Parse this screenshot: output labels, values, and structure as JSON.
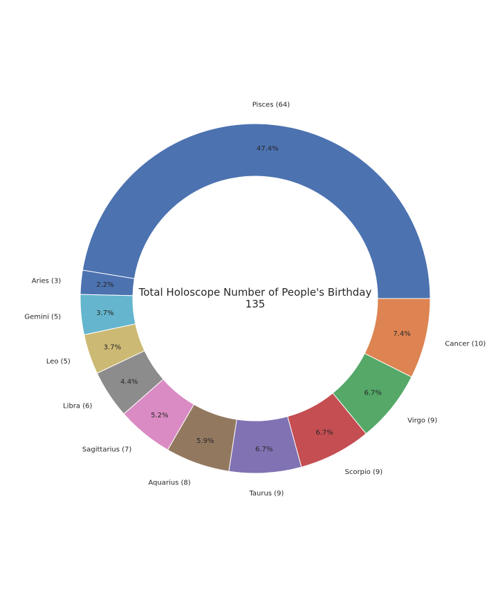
{
  "chart_data": {
    "type": "pie",
    "donut": true,
    "center_text": [
      "Total Holoscope Number of People's Birthday",
      "135"
    ],
    "slices": [
      {
        "name": "Pisces",
        "value": 64,
        "label": "Pisces (64)",
        "pct": "47.4%",
        "color": "#4c72b0"
      },
      {
        "name": "Aries",
        "value": 3,
        "label": "Aries (3)",
        "pct": "2.2%",
        "color": "#4c72b0"
      },
      {
        "name": "Gemini",
        "value": 5,
        "label": "Gemini (5)",
        "pct": "3.7%",
        "color": "#64b5cd"
      },
      {
        "name": "Leo",
        "value": 5,
        "label": "Leo (5)",
        "pct": "3.7%",
        "color": "#ccb974"
      },
      {
        "name": "Libra",
        "value": 6,
        "label": "Libra (6)",
        "pct": "4.4%",
        "color": "#8c8c8c"
      },
      {
        "name": "Sagittarius",
        "value": 7,
        "label": "Sagittarius (7)",
        "pct": "5.2%",
        "color": "#da8bc3"
      },
      {
        "name": "Aquarius",
        "value": 8,
        "label": "Aquarius (8)",
        "pct": "5.9%",
        "color": "#937860"
      },
      {
        "name": "Taurus",
        "value": 9,
        "label": "Taurus (9)",
        "pct": "6.7%",
        "color": "#8172b3"
      },
      {
        "name": "Scorpio",
        "value": 9,
        "label": "Scorpio (9)",
        "pct": "6.7%",
        "color": "#c44e52"
      },
      {
        "name": "Virgo",
        "value": 9,
        "label": "Virgo (9)",
        "pct": "6.7%",
        "color": "#55a868"
      },
      {
        "name": "Cancer",
        "value": 10,
        "label": "Cancer (10)",
        "pct": "7.4%",
        "color": "#dd8452"
      }
    ],
    "start_angle_deg": 0,
    "direction": "counterclockwise",
    "legend": "none"
  }
}
